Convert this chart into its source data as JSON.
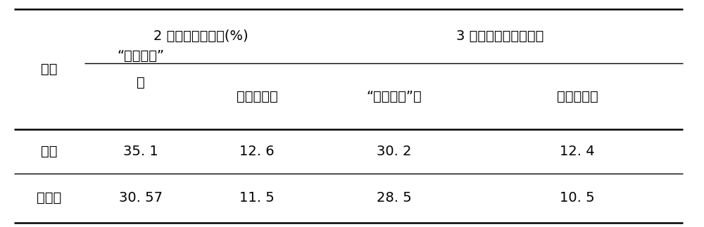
{
  "group_header1_text": "2 年生树开花株率(%)",
  "group_header2_text": "3 年生树坐果数（个）",
  "col0_header": "品种",
  "col1_header_line1": "“两枝一心”",
  "col1_header_line2": "形",
  "col2_header": "疏散分层形",
  "col3_header": "“两枝一心”形",
  "col4_header": "疏散分层形",
  "rows": [
    [
      "次郎",
      "35. 1",
      "12. 6",
      "30. 2",
      "12. 4"
    ],
    [
      "禅寺丸",
      "30. 57",
      "11. 5",
      "28. 5",
      "10. 5"
    ]
  ],
  "bg_color": "#ffffff",
  "text_color": "#000000",
  "line_color": "#000000",
  "font_size": 14
}
